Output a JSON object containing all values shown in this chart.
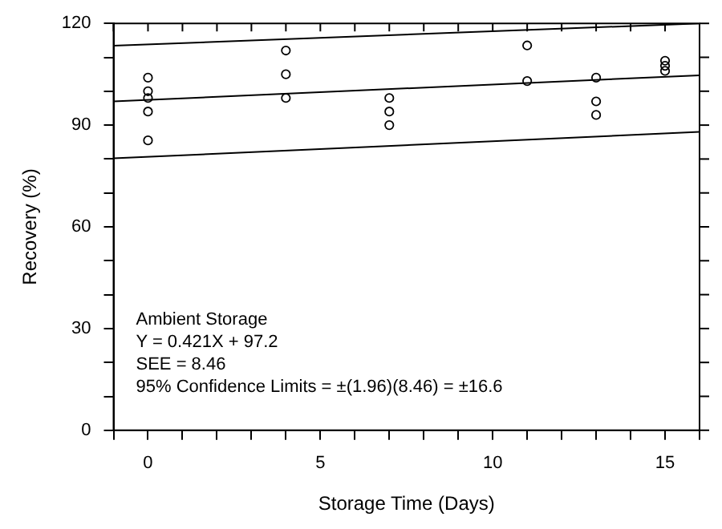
{
  "chart_data": {
    "type": "scatter",
    "xlabel": "Storage Time (Days)",
    "ylabel": "Recovery (%)",
    "xlim": [
      -1,
      16
    ],
    "xticks": [
      {
        "value": -1,
        "label": null
      },
      0,
      {
        "value": 1,
        "label": null
      },
      {
        "value": 2,
        "label": null
      },
      {
        "value": 3,
        "label": null
      },
      {
        "value": 4,
        "label": null
      },
      5,
      {
        "value": 6,
        "label": null
      },
      {
        "value": 7,
        "label": null
      },
      {
        "value": 8,
        "label": null
      },
      {
        "value": 9,
        "label": null
      },
      10,
      {
        "value": 11,
        "label": null
      },
      {
        "value": 12,
        "label": null
      },
      {
        "value": 13,
        "label": null
      },
      {
        "value": 14,
        "label": null
      },
      15,
      {
        "value": 16,
        "label": null
      }
    ],
    "ylim": [
      0,
      120
    ],
    "yticks": [
      0,
      {
        "value": 10,
        "label": null
      },
      {
        "value": 20,
        "label": null
      },
      30,
      {
        "value": 40,
        "label": null
      },
      {
        "value": 50,
        "label": null
      },
      60,
      {
        "value": 70,
        "label": null
      },
      {
        "value": 80,
        "label": null
      },
      90,
      {
        "value": 100,
        "label": null
      },
      {
        "value": 110,
        "label": null
      },
      120
    ],
    "grid": false,
    "legend": false,
    "marker": "circle",
    "series": [
      {
        "color": "#000000",
        "x": [
          0,
          0,
          0,
          0,
          0,
          4,
          4,
          4,
          7,
          7,
          7,
          11,
          11,
          13,
          13,
          13,
          15,
          15,
          15
        ],
        "values": [
          104,
          100,
          98,
          94,
          85.5,
          112,
          105,
          98,
          98,
          94,
          90,
          113.5,
          103,
          104,
          97,
          93,
          109,
          107.5,
          106
        ]
      },
      {
        "type": "line",
        "color": "#000000",
        "marker": "none",
        "x": [
          -1,
          16
        ],
        "values": [
          97,
          104.7
        ]
      },
      {
        "type": "line",
        "color": "#000000",
        "marker": "none",
        "x": [
          -1,
          16
        ],
        "values": [
          113.4,
          120
        ]
      },
      {
        "type": "line",
        "color": "#000000",
        "marker": "none",
        "x": [
          -1,
          16
        ],
        "values": [
          80.2,
          88
        ]
      }
    ],
    "annotations": [
      "Ambient Storage",
      "Y = 0.421X + 97.2",
      "SEE = 8.46",
      "95% Confidence Limits = ±(1.96)(8.46) = ±16.6"
    ]
  }
}
